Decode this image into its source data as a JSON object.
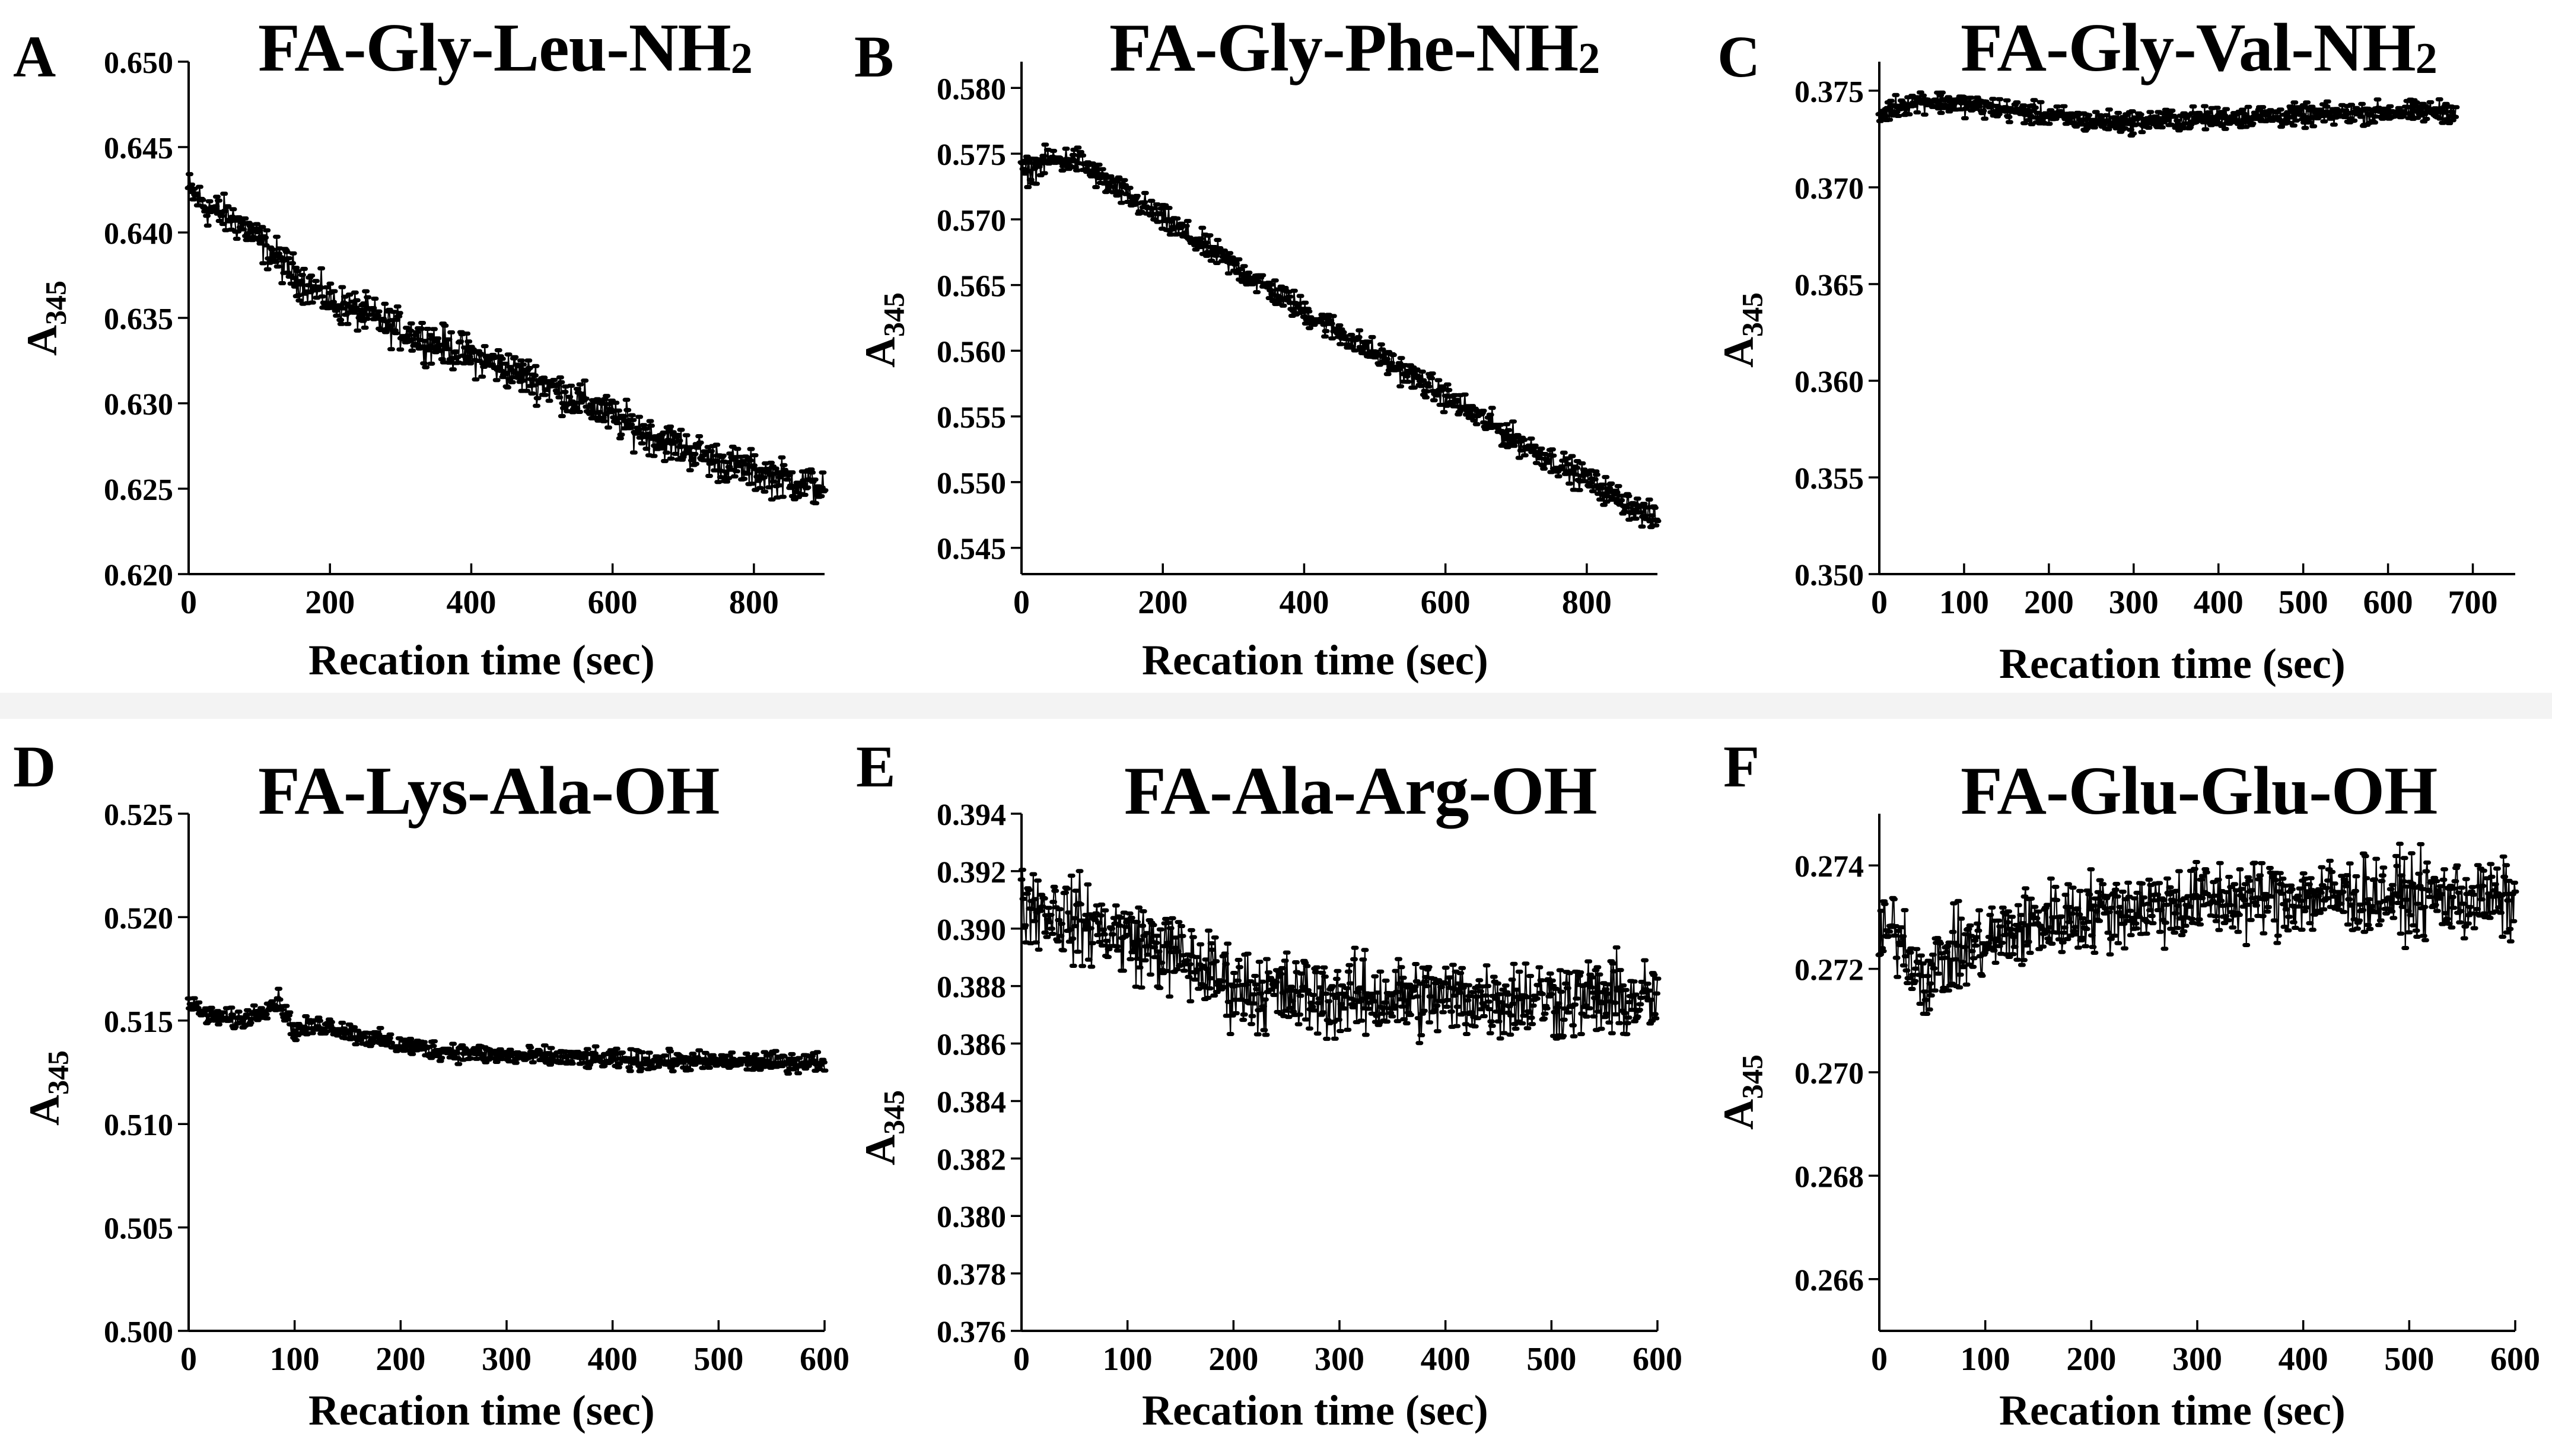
{
  "chart_data": [
    {
      "id": "A",
      "type": "scatter",
      "title": "FA-Gly-Leu-NH",
      "title_sub": "2",
      "xlabel": "Recation time (sec)",
      "ylabel": "A",
      "ylabel_sub": "345",
      "xlim": [
        0,
        900
      ],
      "ylim": [
        0.62,
        0.65
      ],
      "xticks": [
        "0",
        "200",
        "400",
        "600",
        "800"
      ],
      "xtick_values": [
        0,
        200,
        400,
        600,
        800
      ],
      "yticks": [
        "0.620",
        "0.625",
        "0.630",
        "0.635",
        "0.640",
        "0.645",
        "0.650"
      ],
      "ytick_values": [
        0.62,
        0.625,
        0.63,
        0.635,
        0.64,
        0.645,
        0.65
      ],
      "series": [
        {
          "name": "A345",
          "color": "#000000",
          "x": [
            0,
            25,
            50,
            75,
            100,
            150,
            200,
            250,
            300,
            350,
            400,
            450,
            500,
            550,
            600,
            650,
            700,
            750,
            800,
            850,
            900
          ],
          "y": [
            0.6425,
            0.6415,
            0.641,
            0.6405,
            0.6395,
            0.6375,
            0.636,
            0.6352,
            0.6343,
            0.6335,
            0.6328,
            0.632,
            0.6312,
            0.6302,
            0.6292,
            0.6282,
            0.6274,
            0.6266,
            0.626,
            0.6255,
            0.625
          ],
          "noise": 0.0012
        }
      ]
    },
    {
      "id": "B",
      "type": "scatter",
      "title": "FA-Gly-Phe-NH",
      "title_sub": "2",
      "xlabel": "Recation time (sec)",
      "ylabel": "A",
      "ylabel_sub": "345",
      "xlim": [
        0,
        900
      ],
      "ylim": [
        0.543,
        0.582
      ],
      "xticks": [
        "0",
        "200",
        "400",
        "600",
        "800"
      ],
      "xtick_values": [
        0,
        200,
        400,
        600,
        800
      ],
      "yticks": [
        "0.545",
        "0.550",
        "0.555",
        "0.560",
        "0.565",
        "0.570",
        "0.575",
        "0.580"
      ],
      "ytick_values": [
        0.545,
        0.55,
        0.555,
        0.56,
        0.565,
        0.57,
        0.575,
        0.58
      ],
      "series": [
        {
          "name": "A345",
          "color": "#000000",
          "x": [
            0,
            40,
            80,
            120,
            200,
            300,
            400,
            500,
            600,
            700,
            800,
            900
          ],
          "y": [
            0.5735,
            0.5745,
            0.5745,
            0.5728,
            0.57,
            0.5665,
            0.563,
            0.5598,
            0.5565,
            0.5532,
            0.5502,
            0.547
          ],
          "noise": 0.0011
        }
      ]
    },
    {
      "id": "C",
      "type": "scatter",
      "title": "FA-Gly-Val-NH",
      "title_sub": "2",
      "xlabel": "Recation time (sec)",
      "ylabel": "A",
      "ylabel_sub": "345",
      "xlim": [
        0,
        750
      ],
      "ylim": [
        0.35,
        0.3765
      ],
      "xticks": [
        "0",
        "100",
        "200",
        "300",
        "400",
        "500",
        "600",
        "700"
      ],
      "xtick_values": [
        0,
        100,
        200,
        300,
        400,
        500,
        600,
        700
      ],
      "yticks": [
        "0.350",
        "0.355",
        "0.360",
        "0.365",
        "0.370",
        "0.375"
      ],
      "ytick_values": [
        0.35,
        0.355,
        0.36,
        0.365,
        0.37,
        0.375
      ],
      "series": [
        {
          "name": "A345",
          "color": "#000000",
          "x": [
            0,
            20,
            50,
            100,
            150,
            200,
            250,
            300,
            350,
            400,
            450,
            500,
            550,
            600,
            650,
            680
          ],
          "y": [
            0.3737,
            0.3742,
            0.3745,
            0.3743,
            0.374,
            0.3737,
            0.3734,
            0.3734,
            0.3735,
            0.3736,
            0.3737,
            0.3737,
            0.3738,
            0.3739,
            0.3739,
            0.374
          ],
          "noise": 0.0006
        }
      ]
    },
    {
      "id": "D",
      "type": "scatter",
      "title": "FA-Lys-Ala-OH",
      "title_sub": "",
      "xlabel": "Recation time (sec)",
      "ylabel": "A",
      "ylabel_sub": "345",
      "xlim": [
        0,
        600
      ],
      "ylim": [
        0.5,
        0.525
      ],
      "xticks": [
        "0",
        "100",
        "200",
        "300",
        "400",
        "500",
        "600"
      ],
      "xtick_values": [
        0,
        100,
        200,
        300,
        400,
        500,
        600
      ],
      "yticks": [
        "0.500",
        "0.505",
        "0.510",
        "0.515",
        "0.520",
        "0.525"
      ],
      "ytick_values": [
        0.5,
        0.505,
        0.51,
        0.515,
        0.52,
        0.525
      ],
      "series": [
        {
          "name": "A345",
          "color": "#000000",
          "x": [
            0,
            20,
            50,
            85,
            100,
            130,
            160,
            200,
            250,
            300,
            400,
            500,
            600
          ],
          "y": [
            0.5158,
            0.5152,
            0.515,
            0.516,
            0.5145,
            0.5148,
            0.5143,
            0.5138,
            0.5135,
            0.5133,
            0.5131,
            0.513,
            0.513
          ],
          "noise": 0.0005
        }
      ]
    },
    {
      "id": "E",
      "type": "scatter",
      "title": "FA-Ala-Arg-OH",
      "title_sub": "",
      "xlabel": "Recation time (sec)",
      "ylabel": "A",
      "ylabel_sub": "345",
      "xlim": [
        0,
        600
      ],
      "ylim": [
        0.376,
        0.394
      ],
      "xticks": [
        "0",
        "100",
        "200",
        "300",
        "400",
        "500",
        "600"
      ],
      "xtick_values": [
        0,
        100,
        200,
        300,
        400,
        500,
        600
      ],
      "yticks": [
        "0.376",
        "0.378",
        "0.380",
        "0.382",
        "0.384",
        "0.386",
        "0.388",
        "0.390",
        "0.392",
        "0.394"
      ],
      "ytick_values": [
        0.376,
        0.378,
        0.38,
        0.382,
        0.384,
        0.386,
        0.388,
        0.39,
        0.392,
        0.394
      ],
      "series": [
        {
          "name": "A345",
          "color": "#000000",
          "x": [
            0,
            50,
            100,
            150,
            200,
            250,
            300,
            400,
            500,
            600
          ],
          "y": [
            0.391,
            0.3903,
            0.3897,
            0.389,
            0.388,
            0.3877,
            0.3876,
            0.3876,
            0.3876,
            0.3875
          ],
          "noise": 0.0015
        }
      ]
    },
    {
      "id": "F",
      "type": "scatter",
      "title": "FA-Glu-Glu-OH",
      "title_sub": "",
      "xlabel": "Recation time (sec)",
      "ylabel": "A",
      "ylabel_sub": "345",
      "xlim": [
        0,
        600
      ],
      "ylim": [
        0.265,
        0.275
      ],
      "xticks": [
        "0",
        "100",
        "200",
        "300",
        "400",
        "500",
        "600"
      ],
      "xtick_values": [
        0,
        100,
        200,
        300,
        400,
        500,
        600
      ],
      "yticks": [
        "0.266",
        "0.268",
        "0.270",
        "0.272",
        "0.274"
      ],
      "ytick_values": [
        0.266,
        0.268,
        0.27,
        0.272,
        0.274
      ],
      "series": [
        {
          "name": "A345",
          "color": "#000000",
          "x": [
            0,
            15,
            30,
            45,
            60,
            100,
            150,
            200,
            300,
            400,
            500,
            600
          ],
          "y": [
            0.2725,
            0.2728,
            0.2722,
            0.2718,
            0.2722,
            0.2725,
            0.2729,
            0.2731,
            0.2733,
            0.2734,
            0.2734,
            0.2733
          ],
          "noise": 0.0008
        }
      ]
    }
  ]
}
